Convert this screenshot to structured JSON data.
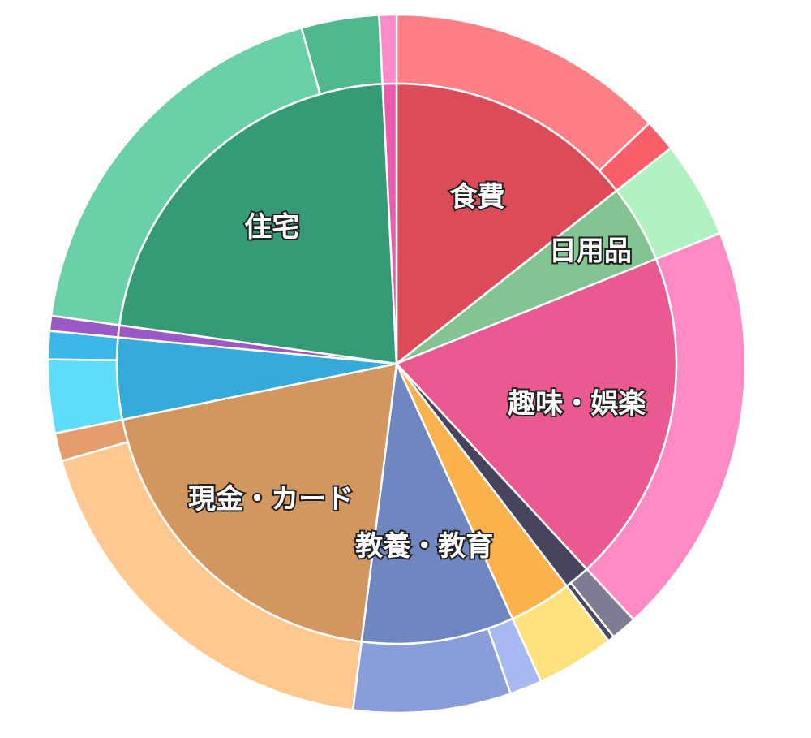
{
  "chart_data": {
    "type": "pie",
    "variant": "sunburst",
    "inner": [
      {
        "label": "食費",
        "value": 14.4,
        "color": "#dc4c58"
      },
      {
        "label": "日用品",
        "value": 4.5,
        "color": "#84c492"
      },
      {
        "label": "趣味・娯楽",
        "value": 19.2,
        "color": "#ea5990"
      },
      {
        "label": "",
        "value": 1.5,
        "color": "#48445e"
      },
      {
        "label": "",
        "value": 3.6,
        "color": "#fbb24c"
      },
      {
        "label": "教養・教育",
        "value": 8.8,
        "color": "#6f86c1"
      },
      {
        "label": "現金・カード",
        "value": 19.8,
        "color": "#d29660"
      },
      {
        "label": "",
        "value": 4.7,
        "color": "#35aadb"
      },
      {
        "label": "",
        "value": 0.7,
        "color": "#9b59c6"
      },
      {
        "label": "住宅",
        "value": 22.0,
        "color": "#359b76"
      },
      {
        "label": "",
        "value": 0.8,
        "color": "#ea5cad"
      }
    ],
    "outer": [
      {
        "value": 12.9,
        "color": "#ff7f86"
      },
      {
        "value": 1.5,
        "color": "#f85f68"
      },
      {
        "value": 4.5,
        "color": "#b2f2c2"
      },
      {
        "value": 19.2,
        "color": "#ff8ac4"
      },
      {
        "value": 1.2,
        "color": "#7f7b92"
      },
      {
        "value": 0.3,
        "color": "#4a4660"
      },
      {
        "value": 3.6,
        "color": "#ffe27e"
      },
      {
        "value": 1.5,
        "color": "#a8b9f2"
      },
      {
        "value": 7.3,
        "color": "#889dd9"
      },
      {
        "value": 18.5,
        "color": "#ffc891"
      },
      {
        "value": 1.3,
        "color": "#e49d6f"
      },
      {
        "value": 3.4,
        "color": "#5edcfa"
      },
      {
        "value": 1.3,
        "color": "#3db7ea"
      },
      {
        "value": 0.7,
        "color": "#9b59c6"
      },
      {
        "value": 18.4,
        "color": "#6ad0a8"
      },
      {
        "value": 3.6,
        "color": "#4fb88c"
      },
      {
        "value": 0.8,
        "color": "#ff8ac8"
      }
    ]
  }
}
